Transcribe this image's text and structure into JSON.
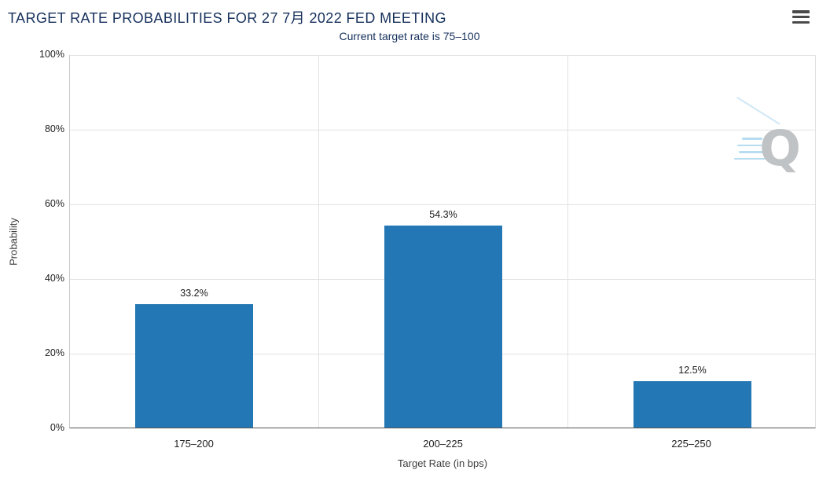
{
  "header": {
    "title": "TARGET RATE PROBABILITIES FOR 27 7月 2022 FED MEETING"
  },
  "subtitle": "Current target rate is 75–100",
  "chart_data": {
    "type": "bar",
    "title": "TARGET RATE PROBABILITIES FOR 27 7月 2022 FED MEETING",
    "subtitle": "Current target rate is 75–100",
    "categories": [
      "175–200",
      "200–225",
      "225–250"
    ],
    "values": [
      33.2,
      54.3,
      12.5
    ],
    "value_labels": [
      "33.2%",
      "54.3%",
      "12.5%"
    ],
    "xlabel": "Target Rate (in bps)",
    "ylabel": "Probability",
    "ylim": [
      0,
      100
    ],
    "yticks": [
      "100%",
      "80%",
      "60%",
      "40%",
      "20%",
      "0%"
    ],
    "grid": true,
    "legend": "none",
    "bar_color": "#2277b4"
  },
  "watermark": {
    "letter": "Q"
  },
  "icons": {
    "menu": "hamburger-icon"
  }
}
